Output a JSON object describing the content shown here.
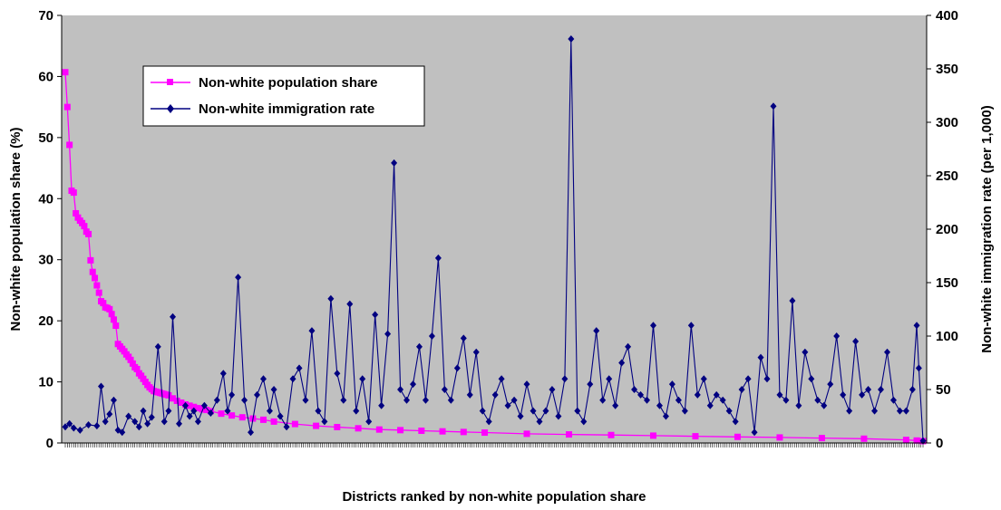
{
  "chart_data": {
    "type": "line",
    "title": "",
    "xlabel": "Districts ranked by non-white population share",
    "ylabel_left": "Non-white population share (%)",
    "ylabel_right": "Non-white immigration rate (per 1,000)",
    "ylim_left": [
      0,
      70
    ],
    "ylim_right": [
      0,
      400
    ],
    "yticks_left": [
      "0",
      "10",
      "20",
      "30",
      "40",
      "50",
      "60",
      "70"
    ],
    "yticks_right": [
      "0",
      "50",
      "100",
      "150",
      "200",
      "250",
      "300",
      "350",
      "400"
    ],
    "x_range": [
      1,
      408
    ],
    "grid": false,
    "legend_position": "top-left",
    "plot_background": "#c0c0c0",
    "series": [
      {
        "name": "Non-white population share",
        "axis": "left",
        "color": "#ff00ff",
        "marker": "square",
        "x": [
          1,
          2,
          3,
          4,
          5,
          6,
          7,
          8,
          9,
          10,
          11,
          12,
          13,
          14,
          15,
          16,
          17,
          18,
          19,
          20,
          21,
          22,
          23,
          24,
          25,
          26,
          27,
          28,
          29,
          30,
          31,
          32,
          33,
          34,
          35,
          36,
          37,
          38,
          39,
          40,
          41,
          42,
          43,
          44,
          45,
          46,
          47,
          48,
          49,
          50,
          52,
          54,
          56,
          58,
          60,
          62,
          64,
          66,
          68,
          70,
          75,
          80,
          85,
          90,
          95,
          100,
          110,
          120,
          130,
          140,
          150,
          160,
          170,
          180,
          190,
          200,
          220,
          240,
          260,
          280,
          300,
          320,
          340,
          360,
          380,
          400,
          405,
          408
        ],
        "values": [
          60.7,
          55,
          48.8,
          41.3,
          41,
          37.6,
          36.9,
          36.4,
          36,
          35.5,
          34.6,
          34.2,
          29.9,
          28,
          27,
          25.8,
          24.6,
          23.2,
          22.9,
          22.2,
          22.1,
          21.9,
          21.1,
          20.2,
          19.2,
          16.2,
          15.8,
          15.4,
          15,
          14.5,
          14.1,
          13.6,
          13,
          12.4,
          12.1,
          11.4,
          11,
          10.5,
          10,
          9.5,
          9.1,
          8.8,
          8.5,
          8.4,
          8.3,
          8.2,
          8.1,
          8,
          7.9,
          7.8,
          7.3,
          6.9,
          6.6,
          6.3,
          6.1,
          5.9,
          5.7,
          5.5,
          5.4,
          5.2,
          4.8,
          4.5,
          4.2,
          4,
          3.8,
          3.5,
          3.1,
          2.8,
          2.6,
          2.4,
          2.2,
          2.1,
          2,
          1.9,
          1.8,
          1.7,
          1.5,
          1.4,
          1.3,
          1.2,
          1.1,
          1,
          0.9,
          0.8,
          0.7,
          0.5,
          0.4,
          0.3
        ]
      },
      {
        "name": "Non-white immigration rate",
        "axis": "right",
        "color": "#000080",
        "marker": "diamond",
        "x": [
          1,
          3,
          5,
          8,
          12,
          16,
          18,
          20,
          22,
          24,
          26,
          28,
          31,
          34,
          36,
          38,
          40,
          42,
          45,
          48,
          50,
          52,
          55,
          58,
          60,
          62,
          64,
          67,
          70,
          73,
          76,
          78,
          80,
          83,
          86,
          89,
          92,
          95,
          98,
          100,
          103,
          106,
          109,
          112,
          115,
          118,
          121,
          124,
          127,
          130,
          133,
          136,
          139,
          142,
          145,
          148,
          151,
          154,
          157,
          160,
          163,
          166,
          169,
          172,
          175,
          178,
          181,
          184,
          187,
          190,
          193,
          196,
          199,
          202,
          205,
          208,
          211,
          214,
          217,
          220,
          223,
          226,
          229,
          232,
          235,
          238,
          241,
          244,
          247,
          250,
          253,
          256,
          259,
          262,
          265,
          268,
          271,
          274,
          277,
          280,
          283,
          286,
          289,
          292,
          295,
          298,
          301,
          304,
          307,
          310,
          313,
          316,
          319,
          322,
          325,
          328,
          331,
          334,
          337,
          340,
          343,
          346,
          349,
          352,
          355,
          358,
          361,
          364,
          367,
          370,
          373,
          376,
          379,
          382,
          385,
          388,
          391,
          394,
          397,
          400,
          403,
          405,
          406,
          408
        ],
        "values": [
          15,
          18,
          14,
          12,
          17,
          16,
          53,
          20,
          27,
          40,
          12,
          10,
          25,
          20,
          15,
          30,
          18,
          24,
          90,
          20,
          30,
          118,
          18,
          35,
          25,
          30,
          20,
          35,
          28,
          40,
          65,
          30,
          45,
          155,
          40,
          10,
          45,
          60,
          30,
          50,
          25,
          15,
          60,
          70,
          40,
          105,
          30,
          20,
          135,
          65,
          40,
          130,
          30,
          60,
          20,
          120,
          35,
          102,
          262,
          50,
          40,
          55,
          90,
          40,
          100,
          173,
          50,
          40,
          70,
          98,
          45,
          85,
          30,
          20,
          45,
          60,
          35,
          40,
          25,
          55,
          30,
          20,
          30,
          50,
          25,
          60,
          378,
          30,
          20,
          55,
          105,
          40,
          60,
          35,
          75,
          90,
          50,
          45,
          40,
          110,
          35,
          25,
          55,
          40,
          30,
          110,
          45,
          60,
          35,
          45,
          40,
          30,
          20,
          50,
          60,
          10,
          80,
          60,
          315,
          45,
          40,
          133,
          35,
          85,
          60,
          40,
          35,
          55,
          100,
          45,
          30,
          95,
          45,
          50,
          30,
          50,
          85,
          40,
          30,
          30,
          50,
          110,
          70,
          2
        ]
      }
    ]
  }
}
